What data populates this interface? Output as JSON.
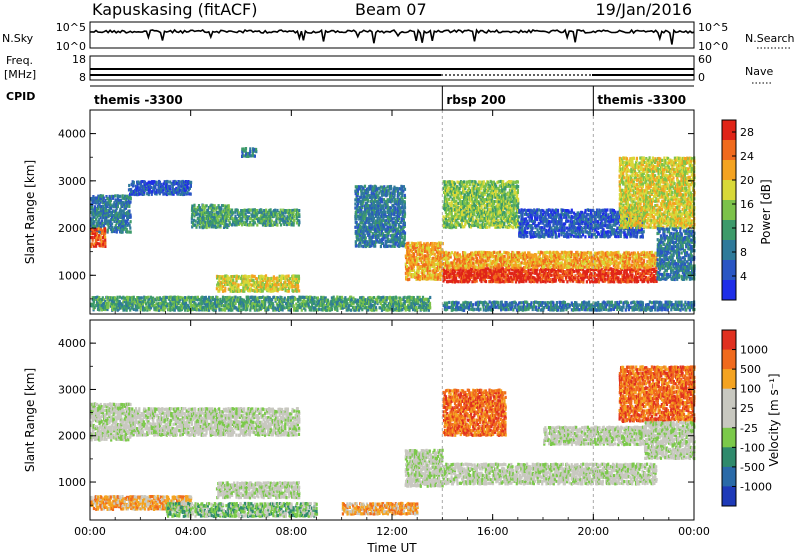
{
  "header": {
    "station": "Kapuskasing (fitACF)",
    "beam": "Beam 07",
    "date": "19/Jan/2016"
  },
  "strips": {
    "nsky_label": "N.Sky",
    "nsky_ticks": [
      "10^5",
      "10^0"
    ],
    "nsearch_label": "N.Search",
    "nsearch_ticks": [
      "10^5",
      "10^0"
    ],
    "freq_label_top": "Freq.",
    "freq_label_unit": "[MHz]",
    "freq_ticks": [
      "18",
      "8"
    ],
    "nave_label": "Nave",
    "nave_ticks": [
      "60",
      "0"
    ],
    "cpid_label": "CPID",
    "cpid_segments": [
      {
        "label": "themis -3300",
        "start_hour": 0,
        "end_hour": 14
      },
      {
        "label": "rbsp 200",
        "start_hour": 14,
        "end_hour": 20
      },
      {
        "label": "themis -3300",
        "start_hour": 20,
        "end_hour": 24
      }
    ]
  },
  "chart_data": [
    {
      "type": "heatmap",
      "name": "power-panel",
      "xlabel": "Time UT",
      "ylabel": "Slant Range [km]",
      "xlim": [
        0,
        24
      ],
      "ylim": [
        180,
        4500
      ],
      "xticks": [
        0,
        4,
        8,
        12,
        16,
        20,
        24
      ],
      "xtick_labels": [
        "00:00",
        "04:00",
        "08:00",
        "12:00",
        "16:00",
        "20:00",
        "00:00"
      ],
      "yticks": [
        1000,
        2000,
        3000,
        4000
      ],
      "ytick_labels": [
        "1000",
        "2000",
        "3000",
        "4000"
      ],
      "colorbar": {
        "label": "Power [dB]",
        "range": [
          0,
          30
        ],
        "ticks": [
          "4",
          "8",
          "12",
          "16",
          "20",
          "24",
          "28"
        ],
        "colors": [
          "#1f2ee8",
          "#2a56c4",
          "#2f7a9a",
          "#3d9a6a",
          "#7cc24a",
          "#d8d838",
          "#f4a321",
          "#f06a1d",
          "#e02418"
        ]
      },
      "features": [
        {
          "kind": "scatter",
          "t0": 0,
          "t1": 1.6,
          "r0": 1900,
          "r1": 2700,
          "level": 2
        },
        {
          "kind": "scatter",
          "t0": 0,
          "t1": 0.6,
          "r0": 1600,
          "r1": 2000,
          "level": 7
        },
        {
          "kind": "scatter",
          "t0": 1.5,
          "t1": 4,
          "r0": 2700,
          "r1": 3000,
          "level": 1
        },
        {
          "kind": "scatter",
          "t0": 4,
          "t1": 5.5,
          "r0": 2000,
          "r1": 2500,
          "level": 3
        },
        {
          "kind": "scatter",
          "t0": 5.5,
          "t1": 8.3,
          "r0": 2050,
          "r1": 2400,
          "level": 3
        },
        {
          "kind": "scatter",
          "t0": 5,
          "t1": 8.3,
          "r0": 650,
          "r1": 1000,
          "level": 5
        },
        {
          "kind": "scatter",
          "t0": 0,
          "t1": 13.5,
          "r0": 250,
          "r1": 550,
          "level": 3
        },
        {
          "kind": "scatter",
          "t0": 6,
          "t1": 6.6,
          "r0": 3500,
          "r1": 3700,
          "level": 2
        },
        {
          "kind": "scatter",
          "t0": 10.5,
          "t1": 12.5,
          "r0": 1600,
          "r1": 2900,
          "level": 2
        },
        {
          "kind": "scatter",
          "t0": 12.5,
          "t1": 14,
          "r0": 900,
          "r1": 1700,
          "level": 6
        },
        {
          "kind": "scatter",
          "t0": 14,
          "t1": 22.5,
          "r0": 850,
          "r1": 1150,
          "level": 8
        },
        {
          "kind": "scatter",
          "t0": 14,
          "t1": 22.5,
          "r0": 1150,
          "r1": 1500,
          "level": 6
        },
        {
          "kind": "scatter",
          "t0": 14,
          "t1": 17,
          "r0": 2000,
          "r1": 3000,
          "level": 4
        },
        {
          "kind": "scatter",
          "t0": 17,
          "t1": 22,
          "r0": 1800,
          "r1": 2400,
          "level": 1
        },
        {
          "kind": "scatter",
          "t0": 21,
          "t1": 24,
          "r0": 2000,
          "r1": 3500,
          "level": 5
        },
        {
          "kind": "scatter",
          "t0": 22.5,
          "t1": 24,
          "r0": 900,
          "r1": 2000,
          "level": 2
        },
        {
          "kind": "scatter",
          "t0": 14,
          "t1": 24,
          "r0": 250,
          "r1": 450,
          "level": 2
        }
      ]
    },
    {
      "type": "heatmap",
      "name": "velocity-panel",
      "xlabel": "Time UT",
      "ylabel": "Slant Range [km]",
      "xlim": [
        0,
        24
      ],
      "ylim": [
        180,
        4500
      ],
      "xticks": [
        0,
        4,
        8,
        12,
        16,
        20,
        24
      ],
      "xtick_labels": [
        "00:00",
        "04:00",
        "08:00",
        "12:00",
        "16:00",
        "20:00",
        "00:00"
      ],
      "yticks": [
        1000,
        2000,
        3000,
        4000
      ],
      "ytick_labels": [
        "1000",
        "2000",
        "3000",
        "4000"
      ],
      "colorbar": {
        "label": "Velocity [m s⁻¹]",
        "ticks": [
          "1000",
          "500",
          "100",
          "25",
          "-25",
          "-100",
          "-500",
          "-1000"
        ],
        "colors": [
          "#1e3ab8",
          "#2a6aa8",
          "#2f8a6c",
          "#7bc94a",
          "#c8c8c0",
          "#c8c8c0",
          "#f4a321",
          "#f06a1d",
          "#e03020"
        ]
      },
      "features": [
        {
          "kind": "scatter",
          "t0": 0,
          "t1": 1.6,
          "r0": 1900,
          "r1": 2700,
          "level": 4
        },
        {
          "kind": "scatter",
          "t0": 1.5,
          "t1": 8.3,
          "r0": 2000,
          "r1": 2600,
          "level": 4
        },
        {
          "kind": "scatter",
          "t0": 5,
          "t1": 8.3,
          "r0": 650,
          "r1": 1000,
          "level": 4
        },
        {
          "kind": "scatter",
          "t0": 0,
          "t1": 4,
          "r0": 400,
          "r1": 700,
          "level": 6
        },
        {
          "kind": "scatter",
          "t0": 3,
          "t1": 9,
          "r0": 250,
          "r1": 550,
          "level": 3
        },
        {
          "kind": "scatter",
          "t0": 10,
          "t1": 13,
          "r0": 300,
          "r1": 550,
          "level": 6
        },
        {
          "kind": "scatter",
          "t0": 12.5,
          "t1": 14,
          "r0": 900,
          "r1": 1700,
          "level": 4
        },
        {
          "kind": "scatter",
          "t0": 14,
          "t1": 22.5,
          "r0": 950,
          "r1": 1400,
          "level": 4
        },
        {
          "kind": "scatter",
          "t0": 14,
          "t1": 16.5,
          "r0": 2000,
          "r1": 3000,
          "level": 7
        },
        {
          "kind": "scatter",
          "t0": 21,
          "t1": 24,
          "r0": 2300,
          "r1": 3500,
          "level": 7
        },
        {
          "kind": "scatter",
          "t0": 22,
          "t1": 24,
          "r0": 1500,
          "r1": 2300,
          "level": 4
        },
        {
          "kind": "scatter",
          "t0": 18,
          "t1": 22,
          "r0": 1800,
          "r1": 2200,
          "level": 4
        }
      ]
    }
  ]
}
